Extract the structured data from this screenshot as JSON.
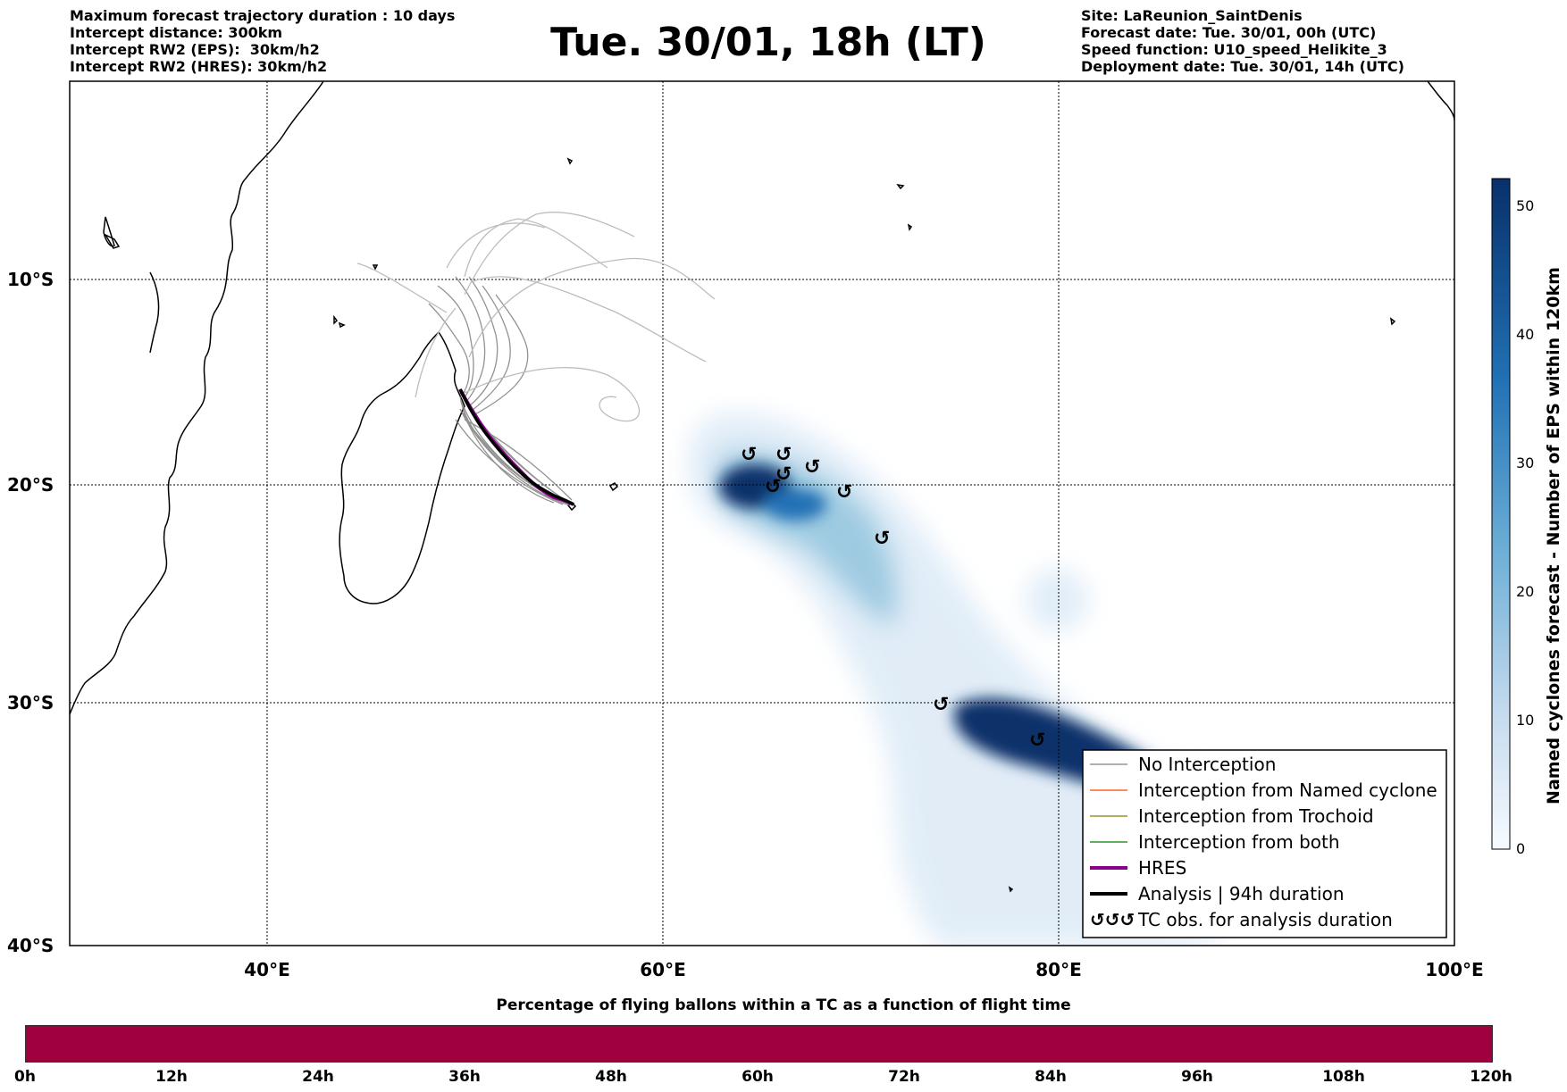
{
  "header": {
    "left_lines": [
      "Maximum forecast trajectory duration : 10 days",
      "Intercept distance: 300km",
      "Intercept RW2 (EPS):  30km/h2",
      "Intercept RW2 (HRES): 30km/h2"
    ],
    "title": "Tue. 30/01, 18h (LT)",
    "right_lines": [
      "Site: LaReunion_SaintDenis",
      "Forecast date: Tue. 30/01, 00h (UTC)",
      "Speed function: U10_speed_Helikite_3",
      "Deployment date: Tue. 30/01, 14h (UTC)"
    ]
  },
  "map": {
    "lon_range": [
      30,
      100
    ],
    "lat_range": [
      -40,
      0
    ],
    "lon_ticks": [
      "40°E",
      "60°E",
      "80°E",
      "100°E"
    ],
    "lat_ticks": [
      "10°S",
      "20°S",
      "30°S",
      "40°S"
    ],
    "colors": {
      "no_interception": "#808080",
      "named_cyclone": "#ff4500",
      "trochoid": "#808000",
      "both": "#008000",
      "hres": "#8b008b",
      "analysis": "#000000",
      "density_dark": "#08306b",
      "density_light": "#deebf7"
    },
    "tc_obs_symbol": "ʛ"
  },
  "legend": {
    "items": [
      {
        "label": "No Interception",
        "color": "#808080",
        "style": "thin"
      },
      {
        "label": "Interception from Named cyclone",
        "color": "#ff4500",
        "style": "thin"
      },
      {
        "label": "Interception from Trochoid",
        "color": "#808000",
        "style": "thin"
      },
      {
        "label": "Interception from both",
        "color": "#008000",
        "style": "thin"
      },
      {
        "label": "HRES",
        "color": "#8b008b",
        "style": "thick"
      },
      {
        "label": "Analysis | 94h duration",
        "color": "#000000",
        "style": "thick"
      },
      {
        "label": "TC obs. for analysis duration",
        "color": "#000000",
        "style": "symbol"
      }
    ]
  },
  "colorbar": {
    "label": "Named cyclones forecast - Number of EPS within 120km",
    "ticks": [
      "0",
      "10",
      "20",
      "30",
      "40",
      "50"
    ],
    "range": [
      0,
      52
    ]
  },
  "bottom_bar": {
    "title": "Percentage of flying ballons within a TC as a function of flight time",
    "ticks": [
      "0h",
      "12h",
      "24h",
      "36h",
      "48h",
      "60h",
      "72h",
      "84h",
      "96h",
      "108h",
      "120h"
    ],
    "color": "#a0003e"
  }
}
